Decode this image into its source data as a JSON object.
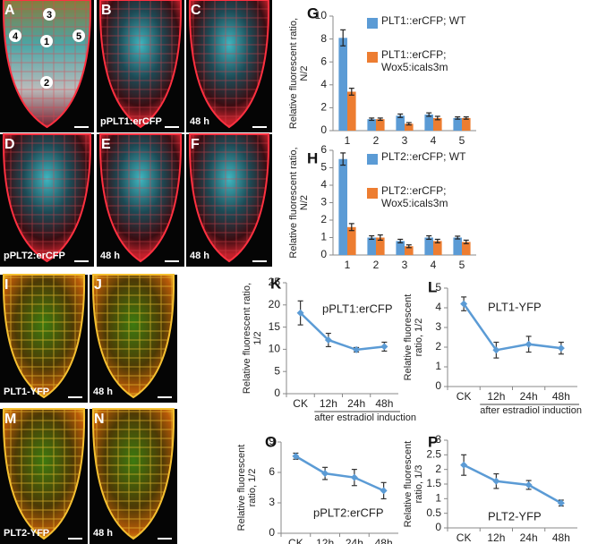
{
  "images": [
    {
      "letter": "A",
      "labels": [
        "3",
        "4",
        "1",
        "5",
        "2"
      ]
    },
    {
      "letter": "B",
      "caption": "pPLT1:erCFP"
    },
    {
      "letter": "C",
      "caption": "48 h"
    },
    {
      "letter": "D",
      "caption": "pPLT2:erCFP"
    },
    {
      "letter": "E",
      "caption": "48 h"
    },
    {
      "letter": "F",
      "caption": "48 h"
    },
    {
      "letter": "I",
      "caption": "PLT1-YFP"
    },
    {
      "letter": "J",
      "caption": "48 h"
    },
    {
      "letter": "M",
      "caption": "PLT2-YFP"
    },
    {
      "letter": "N",
      "caption": "48 h"
    }
  ],
  "chart_data": [
    {
      "type": "bar",
      "panel": "G",
      "ylabel": "Relative fluorescent ratio, N/2",
      "categories": [
        "1",
        "2",
        "3",
        "4",
        "5"
      ],
      "series": [
        {
          "name": "PLT1::erCFP; WT",
          "color": "#5b9bd5",
          "values": [
            8.1,
            1.0,
            1.3,
            1.4,
            1.1
          ],
          "errors": [
            0.7,
            0.1,
            0.15,
            0.15,
            0.1
          ]
        },
        {
          "name": "PLT1::erCFP; Wox5:icals3m",
          "color": "#ed7d31",
          "values": [
            3.4,
            1.0,
            0.6,
            1.1,
            1.1
          ],
          "errors": [
            0.3,
            0.1,
            0.1,
            0.15,
            0.1
          ]
        }
      ],
      "ylim": [
        0,
        10
      ],
      "yticks": [
        0,
        2,
        4,
        6,
        8,
        10
      ]
    },
    {
      "type": "bar",
      "panel": "H",
      "ylabel": "Relative fluorescent ratio, N/2",
      "categories": [
        "1",
        "2",
        "3",
        "4",
        "5"
      ],
      "series": [
        {
          "name": "PLT2::erCFP; WT",
          "color": "#5b9bd5",
          "values": [
            5.5,
            1.0,
            0.8,
            1.0,
            1.0
          ],
          "errors": [
            0.35,
            0.1,
            0.1,
            0.1,
            0.08
          ]
        },
        {
          "name": "PLT2::erCFP; Wox5:icals3m",
          "color": "#ed7d31",
          "values": [
            1.6,
            1.0,
            0.5,
            0.8,
            0.75
          ],
          "errors": [
            0.2,
            0.15,
            0.08,
            0.1,
            0.1
          ]
        }
      ],
      "ylim": [
        0,
        6
      ],
      "yticks": [
        0,
        1,
        2,
        3,
        4,
        5,
        6
      ]
    },
    {
      "type": "line",
      "panel": "K",
      "ylabel": "Relative fluorescent ratio, 1/2",
      "annotation": "pPLT1:erCFP",
      "xlabel": "after estradiol induction",
      "categories": [
        "CK",
        "12h",
        "24h",
        "48h"
      ],
      "color": "#5b9bd5",
      "values": [
        18.2,
        12.1,
        9.9,
        10.6
      ],
      "errors": [
        2.7,
        1.5,
        0.5,
        1.0
      ],
      "ylim": [
        0,
        25
      ],
      "yticks": [
        0,
        5,
        10,
        15,
        20,
        25
      ]
    },
    {
      "type": "line",
      "panel": "L",
      "ylabel": "Relative fluorescent ratio, 1/2",
      "annotation": "PLT1-YFP",
      "xlabel": "after estradiol induction",
      "categories": [
        "CK",
        "12h",
        "24h",
        "48h"
      ],
      "color": "#5b9bd5",
      "values": [
        4.2,
        1.85,
        2.15,
        1.95
      ],
      "errors": [
        0.35,
        0.4,
        0.4,
        0.3
      ],
      "ylim": [
        0,
        5
      ],
      "yticks": [
        0,
        1,
        2,
        3,
        4,
        5
      ]
    },
    {
      "type": "line",
      "panel": "O",
      "ylabel": "Relative fluorescent ratio, 1/2",
      "annotation": "pPLT2:erCFP",
      "xlabel": "after estradiol induction",
      "categories": [
        "CK",
        "12h",
        "24h",
        "48h"
      ],
      "color": "#5b9bd5",
      "values": [
        7.6,
        5.9,
        5.5,
        4.2
      ],
      "errors": [
        0.3,
        0.6,
        0.8,
        0.8
      ],
      "ylim": [
        0,
        9
      ],
      "yticks": [
        0,
        3,
        6,
        9
      ]
    },
    {
      "type": "line",
      "panel": "P",
      "ylabel": "Relative fluorescent ratio, 1/3",
      "annotation": "PLT2-YFP",
      "xlabel": "after estradiol induction",
      "categories": [
        "CK",
        "12h",
        "24h",
        "48h"
      ],
      "color": "#5b9bd5",
      "values": [
        2.15,
        1.6,
        1.47,
        0.85
      ],
      "errors": [
        0.35,
        0.25,
        0.15,
        0.1
      ],
      "ylim": [
        0,
        3
      ],
      "yticks": [
        0,
        0.5,
        1,
        1.5,
        2,
        2.5,
        3
      ]
    }
  ]
}
